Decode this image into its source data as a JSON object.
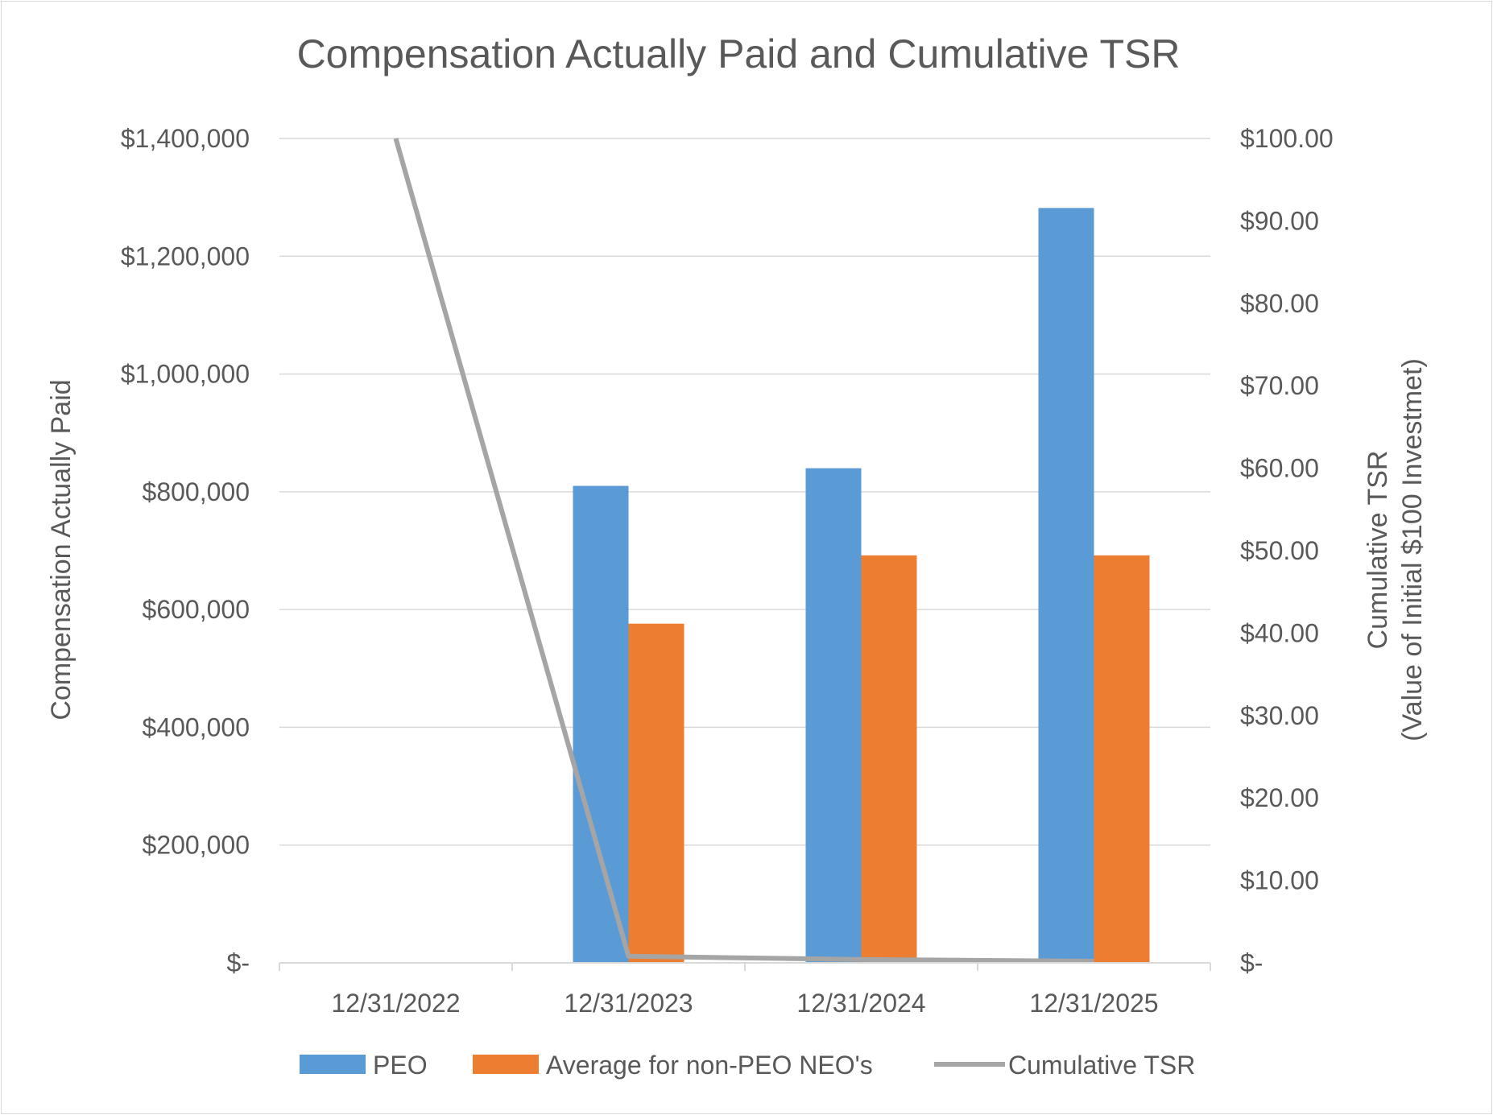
{
  "chart_data": {
    "type": "bar",
    "title": "Compensation Actually Paid and Cumulative TSR",
    "categories": [
      "12/31/2022",
      "12/31/2023",
      "12/31/2024",
      "12/31/2025"
    ],
    "ylabel": "Compensation Actually Paid",
    "y2label_line1": "Cumulative TSR",
    "y2label_line2": "(Value of Initial $100 Investmet)",
    "ylim": [
      0,
      1400000
    ],
    "y2lim": [
      0,
      100
    ],
    "yticks": [
      "$-",
      "$200,000",
      "$400,000",
      "$600,000",
      "$800,000",
      "$1,000,000",
      "$1,200,000",
      "$1,400,000"
    ],
    "y2ticks": [
      "$-",
      "$10.00",
      "$20.00",
      "$30.00",
      "$40.00",
      "$50.00",
      "$60.00",
      "$70.00",
      "$80.00",
      "$90.00",
      "$100.00"
    ],
    "series": [
      {
        "name": "PEO",
        "kind": "bar",
        "axis": "left",
        "color": "#5b9bd5",
        "values": [
          0,
          810000,
          840000,
          1282000
        ]
      },
      {
        "name": "Average for non-PEO NEO's",
        "kind": "bar",
        "axis": "left",
        "color": "#ed7d31",
        "values": [
          0,
          576000,
          692000,
          692000
        ]
      },
      {
        "name": "Cumulative TSR",
        "kind": "line",
        "axis": "right",
        "color": "#a5a5a5",
        "values": [
          100,
          0.8,
          0.4,
          0.2
        ]
      }
    ],
    "grid": true,
    "legend_position": "bottom"
  }
}
